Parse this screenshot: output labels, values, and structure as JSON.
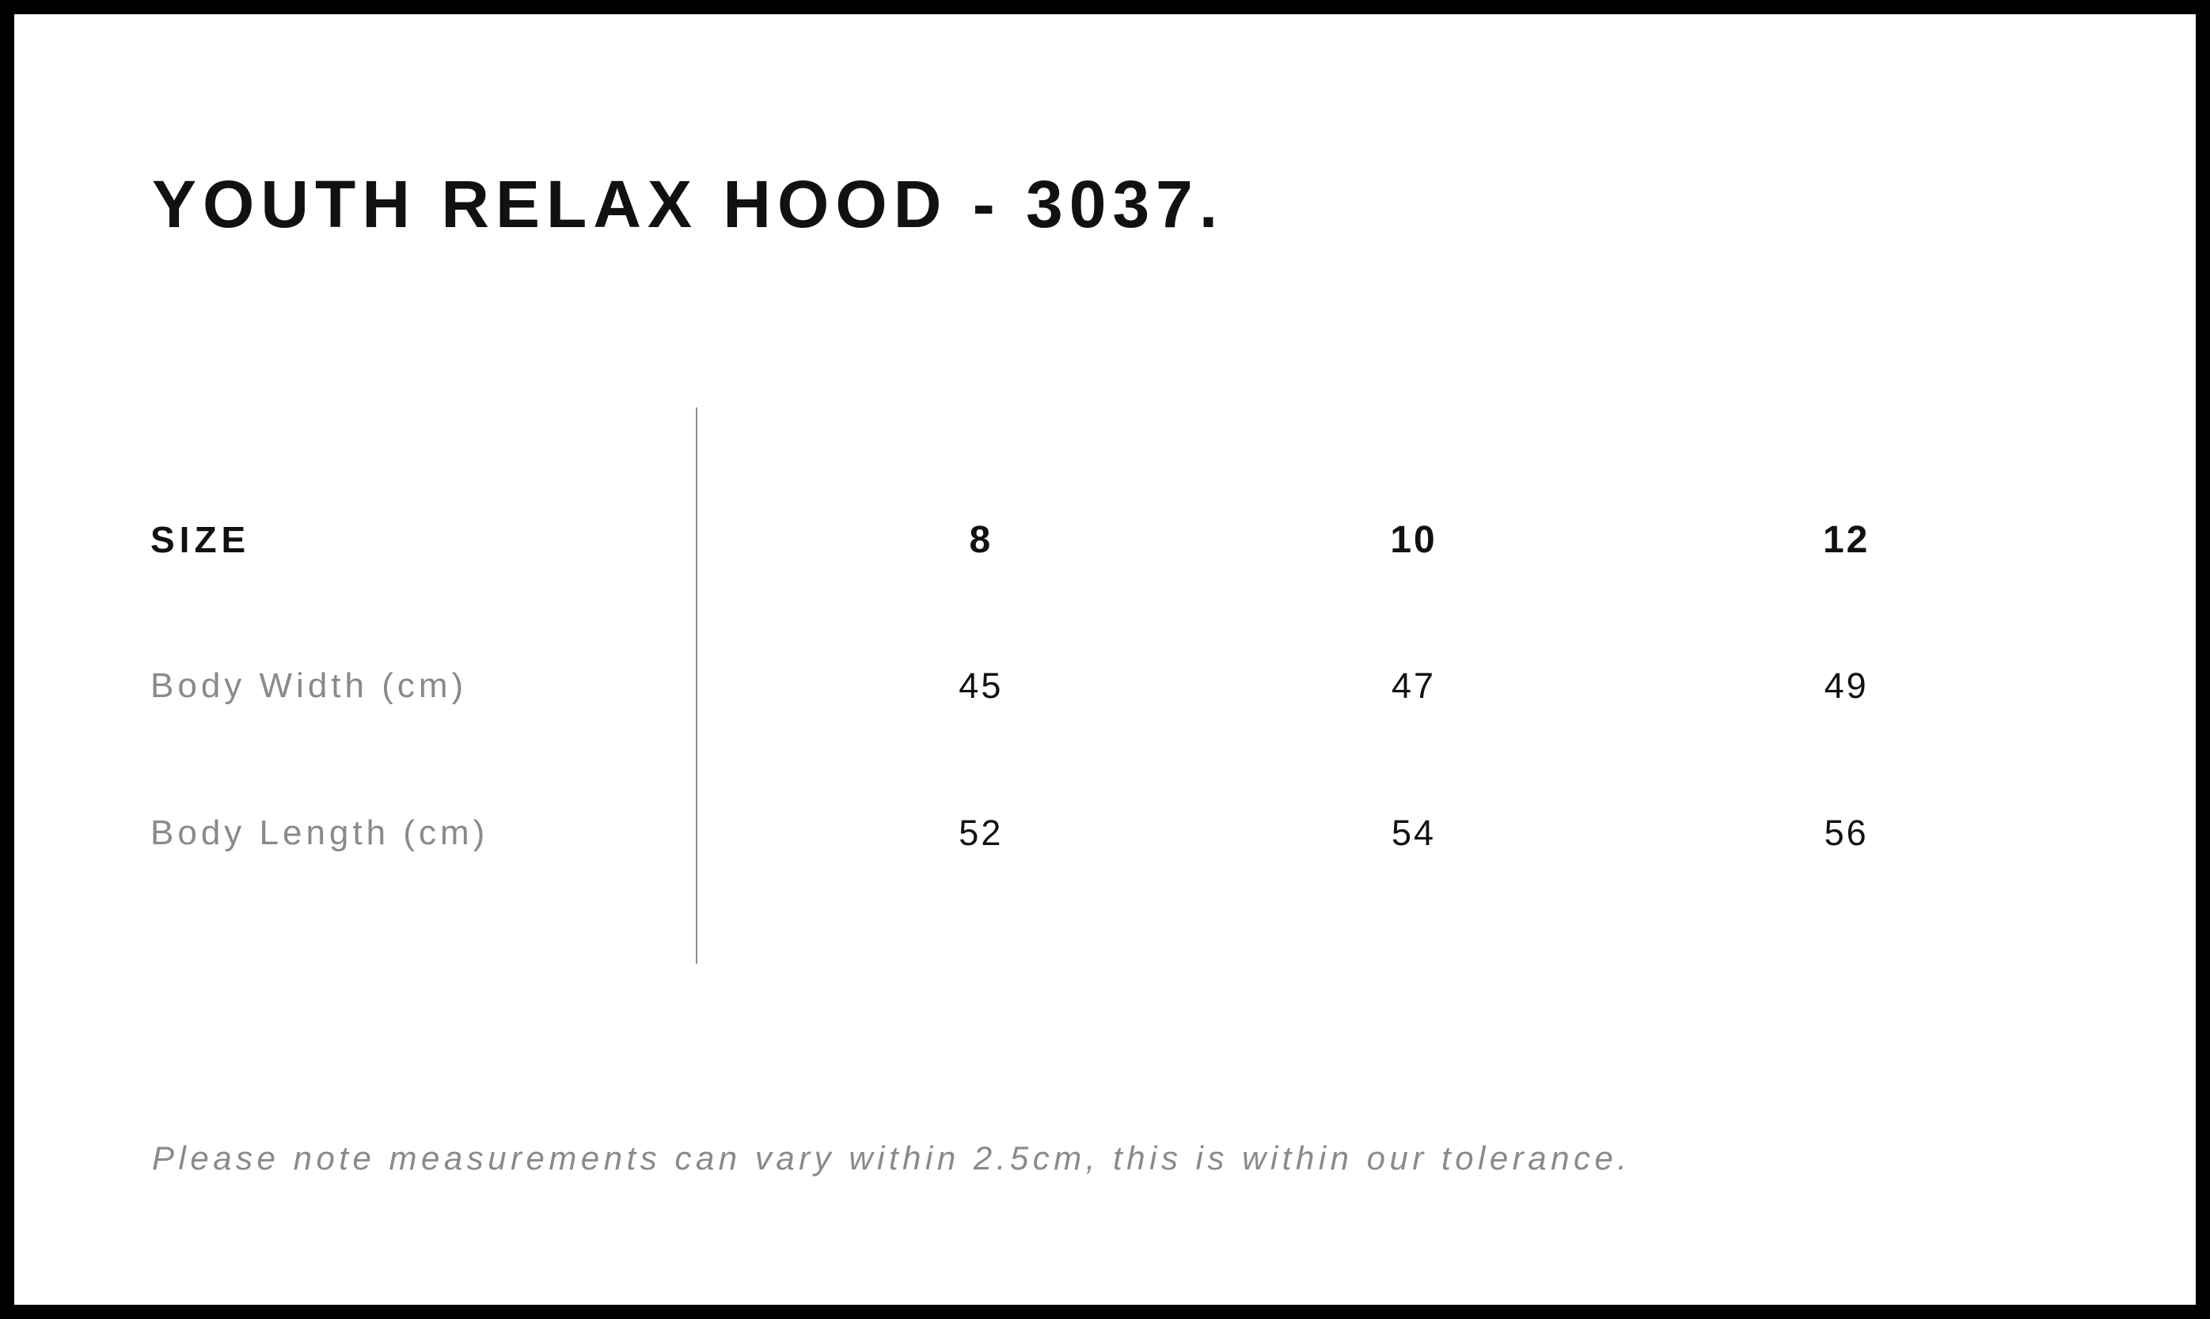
{
  "page": {
    "title": "YOUTH RELAX HOOD - 3037.",
    "note": "Please note measurements can vary within 2.5cm, this is within our tolerance."
  },
  "size_chart": {
    "header_label": "SIZE",
    "sizes": [
      "8",
      "10",
      "12"
    ],
    "rows": [
      {
        "label": "Body Width (cm)",
        "values": [
          "45",
          "47",
          "49"
        ]
      },
      {
        "label": "Body Length (cm)",
        "values": [
          "52",
          "54",
          "56"
        ]
      }
    ]
  },
  "colors": {
    "frame": "#000000",
    "background": "#ffffff",
    "text_primary": "#111111",
    "text_muted": "#8a8a8a",
    "divider": "#8e8e8e"
  }
}
